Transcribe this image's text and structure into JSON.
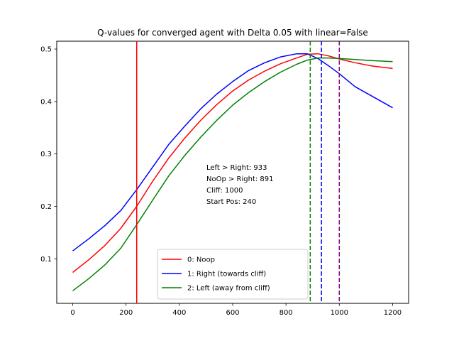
{
  "chart_data": {
    "type": "line",
    "title": "Q-values for converged agent with Delta 0.05 with linear=False",
    "xlabel": "",
    "ylabel": "",
    "xlim": [
      -60,
      1260
    ],
    "ylim": [
      0.015,
      0.515
    ],
    "xticks": [
      0,
      200,
      400,
      600,
      800,
      1000,
      1200
    ],
    "yticks": [
      0.1,
      0.2,
      0.3,
      0.4,
      0.5
    ],
    "x": [
      0,
      60,
      120,
      180,
      240,
      300,
      360,
      420,
      480,
      540,
      600,
      660,
      720,
      780,
      840,
      880,
      920,
      960,
      1000,
      1060,
      1120,
      1200
    ],
    "series": [
      {
        "name": "0: Noop",
        "color": "#ff0000",
        "values": [
          0.074,
          0.098,
          0.125,
          0.158,
          0.2,
          0.248,
          0.292,
          0.33,
          0.364,
          0.394,
          0.42,
          0.441,
          0.458,
          0.472,
          0.483,
          0.49,
          0.491,
          0.487,
          0.481,
          0.474,
          0.468,
          0.463
        ]
      },
      {
        "name": "1: Right (towards cliff)",
        "color": "#0000ff",
        "values": [
          0.115,
          0.138,
          0.163,
          0.192,
          0.232,
          0.275,
          0.318,
          0.353,
          0.386,
          0.414,
          0.438,
          0.459,
          0.474,
          0.485,
          0.491,
          0.491,
          0.482,
          0.468,
          0.453,
          0.428,
          0.411,
          0.388
        ]
      },
      {
        "name": "2: Left (away from cliff)",
        "color": "#008000",
        "values": [
          0.039,
          0.062,
          0.088,
          0.12,
          0.165,
          0.212,
          0.258,
          0.297,
          0.332,
          0.364,
          0.393,
          0.417,
          0.438,
          0.456,
          0.471,
          0.479,
          0.483,
          0.483,
          0.482,
          0.48,
          0.478,
          0.476
        ]
      }
    ],
    "vlines": [
      {
        "x": 240,
        "color": "#ff0000",
        "style": "solid"
      },
      {
        "x": 891,
        "color": "#008000",
        "style": "dashed"
      },
      {
        "x": 933,
        "color": "#0000ff",
        "style": "dashed"
      },
      {
        "x": 1000,
        "color": "#800080",
        "style": "dashed"
      }
    ],
    "annotation_lines": [
      "Left > Right: 933",
      "NoOp > Right: 891",
      "Cliff: 1000",
      "Start Pos: 240"
    ],
    "legend_position": "lower-center",
    "grid": false
  }
}
